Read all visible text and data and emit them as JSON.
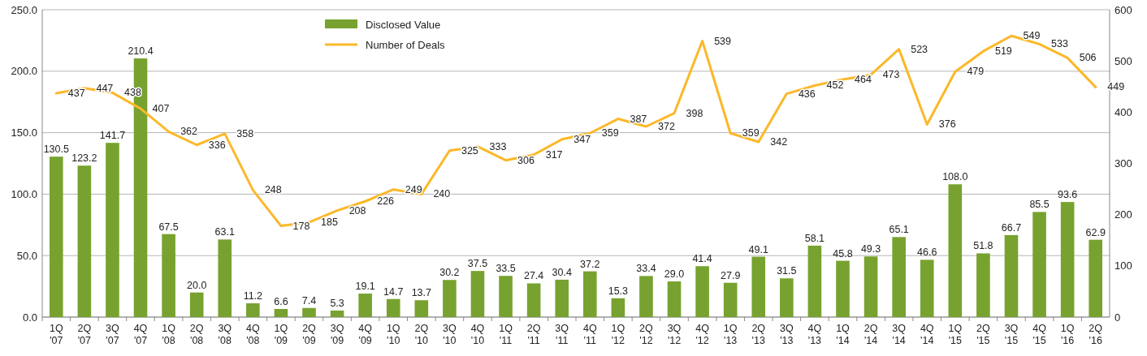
{
  "chart_data": {
    "type": "bar",
    "categories": [
      "1Q '07",
      "2Q '07",
      "3Q '07",
      "4Q '07",
      "1Q '08",
      "2Q '08",
      "3Q '08",
      "4Q '08",
      "1Q '09",
      "2Q '09",
      "3Q '09",
      "4Q '09",
      "1Q '10",
      "2Q '10",
      "3Q '10",
      "4Q '10",
      "1Q '11",
      "2Q '11",
      "3Q '11",
      "4Q '11",
      "1Q '12",
      "2Q '12",
      "3Q '12",
      "4Q '12",
      "1Q '13",
      "2Q '13",
      "3Q '13",
      "4Q '13",
      "1Q '14",
      "2Q '14",
      "3Q '14",
      "4Q '14",
      "1Q '15",
      "2Q '15",
      "3Q '15",
      "4Q '15",
      "1Q '16",
      "2Q '16"
    ],
    "series": [
      {
        "name": "Disclosed Value",
        "color": "#77a22f",
        "values": [
          130.5,
          123.2,
          141.7,
          210.4,
          67.5,
          20.0,
          63.1,
          11.2,
          6.6,
          7.4,
          5.3,
          19.1,
          14.7,
          13.7,
          30.2,
          37.5,
          33.5,
          27.4,
          30.4,
          37.2,
          15.3,
          33.4,
          29.0,
          41.4,
          27.9,
          49.1,
          31.5,
          58.1,
          45.8,
          49.3,
          65.1,
          46.6,
          108.0,
          51.8,
          66.7,
          85.5,
          93.6,
          62.9
        ],
        "value_labels": [
          "130.5",
          "123.2",
          "141.7",
          "210.4",
          "67.5",
          "20.0",
          "63.1",
          "11.2",
          "6.6",
          "7.4",
          "5.3",
          "19.1",
          "14.7",
          "13.7",
          "30.2",
          "37.5",
          "33.5",
          "27.4",
          "30.4",
          "37.2",
          "15.3",
          "33.4",
          "29.0",
          "41.4",
          "27.9",
          "49.1",
          "31.5",
          "58.1",
          "45.8",
          "49.3",
          "65.1",
          "46.6",
          "108.0",
          "51.8",
          "66.7",
          "85.5",
          "93.6",
          "62.9"
        ]
      },
      {
        "name": "Number of Deals",
        "type": "line",
        "axis": "y2",
        "color": "#fbb829",
        "values": [
          437,
          447,
          438,
          407,
          362,
          336,
          358,
          248,
          178,
          185,
          208,
          226,
          249,
          240,
          325,
          333,
          306,
          317,
          347,
          359,
          387,
          372,
          398,
          539,
          359,
          342,
          436,
          452,
          464,
          473,
          523,
          376,
          479,
          519,
          549,
          533,
          506,
          449
        ]
      }
    ],
    "ylim": [
      0,
      250
    ],
    "yticks": [
      {
        "value": 0,
        "label": "0.0"
      },
      {
        "value": 50,
        "label": "50.0"
      },
      {
        "value": 100,
        "label": "100.0"
      },
      {
        "value": 150,
        "label": "150.0"
      },
      {
        "value": 200,
        "label": "200.0"
      },
      {
        "value": 250,
        "label": "250.0"
      }
    ],
    "y2lim": [
      0,
      600
    ],
    "y2ticks": [
      0,
      100,
      200,
      300,
      400,
      500,
      600
    ],
    "grid": "y",
    "legend": "top",
    "data_labels": true,
    "marker": "none"
  }
}
